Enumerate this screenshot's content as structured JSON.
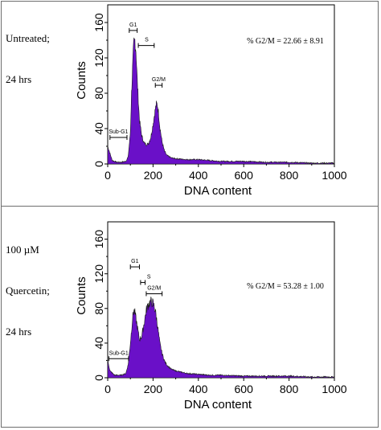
{
  "colors": {
    "fill": "#6a10c8",
    "outline": "#1a1a1a",
    "frame": "#6e6e6e"
  },
  "chart_data": [
    {
      "type": "area",
      "panel_label": [
        "Untreated;",
        "24 hrs"
      ],
      "xlabel": "DNA content",
      "ylabel": "Counts",
      "xlim": [
        0,
        1000
      ],
      "ylim": [
        0,
        180
      ],
      "xticks": [
        "0",
        "200",
        "400",
        "600",
        "800",
        "1000"
      ],
      "yticks": [
        "0",
        "40",
        "80",
        "120",
        "160"
      ],
      "annotation": "% G2/M = 22.66 ± 8.91",
      "gates": [
        {
          "label": "Sub-G1",
          "x": [
            10,
            85
          ],
          "y": 30
        },
        {
          "label": "G1",
          "x": [
            95,
            130
          ],
          "y": 151
        },
        {
          "label": "S",
          "x": [
            135,
            205
          ],
          "y": 134
        },
        {
          "label": "G2/M",
          "x": [
            210,
            240
          ],
          "y": 89
        }
      ],
      "x": [
        0,
        10,
        20,
        40,
        60,
        80,
        90,
        100,
        105,
        110,
        115,
        120,
        125,
        130,
        140,
        150,
        160,
        170,
        180,
        190,
        200,
        210,
        215,
        220,
        225,
        230,
        240,
        250,
        260,
        280,
        300,
        350,
        400,
        450,
        500,
        600,
        700,
        800,
        900,
        1000
      ],
      "values": [
        20,
        12,
        4,
        2,
        2,
        3,
        8,
        35,
        80,
        110,
        135,
        140,
        128,
        96,
        50,
        32,
        24,
        22,
        23,
        30,
        45,
        62,
        68,
        66,
        56,
        42,
        25,
        15,
        10,
        7,
        6,
        5,
        5,
        4,
        3,
        3,
        2,
        2,
        1,
        1
      ]
    },
    {
      "type": "area",
      "panel_label": [
        "100 µM",
        "Quercetin;",
        "24 hrs"
      ],
      "xlabel": "DNA content",
      "ylabel": "Counts",
      "xlim": [
        0,
        1000
      ],
      "ylim": [
        0,
        180
      ],
      "xticks": [
        "0",
        "200",
        "400",
        "600",
        "800",
        "1000"
      ],
      "yticks": [
        "0",
        "40",
        "80",
        "120",
        "160"
      ],
      "annotation": "% G2/M = 53.28 ± 1.00",
      "gates": [
        {
          "label": "Sub-G1",
          "x": [
            5,
            92
          ],
          "y": 22
        },
        {
          "label": "G1",
          "x": [
            100,
            140
          ],
          "y": 128
        },
        {
          "label": "S",
          "x": [
            145,
            165
          ],
          "y": 110
        },
        {
          "label": "G2/M",
          "x": [
            170,
            240
          ],
          "y": 97
        }
      ],
      "x": [
        0,
        10,
        30,
        60,
        80,
        90,
        100,
        110,
        115,
        120,
        130,
        140,
        150,
        160,
        170,
        180,
        190,
        200,
        210,
        220,
        230,
        240,
        250,
        260,
        280,
        300,
        350,
        400,
        450,
        500,
        600,
        700,
        800,
        900,
        1000
      ],
      "values": [
        20,
        8,
        3,
        3,
        5,
        15,
        40,
        70,
        78,
        75,
        60,
        44,
        48,
        62,
        78,
        85,
        88,
        86,
        78,
        60,
        40,
        28,
        20,
        15,
        10,
        8,
        5,
        4,
        3,
        3,
        2,
        2,
        2,
        1,
        1
      ]
    }
  ]
}
